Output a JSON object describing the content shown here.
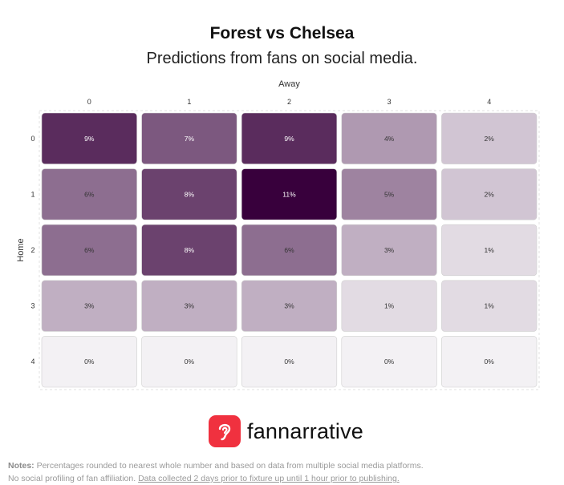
{
  "header": {
    "title": "Forest vs Chelsea",
    "subtitle": "Predictions from fans on social media."
  },
  "chart_data": {
    "type": "heatmap",
    "xlabel": "Away",
    "ylabel": "Home",
    "x_categories": [
      "0",
      "1",
      "2",
      "3",
      "4"
    ],
    "y_categories": [
      "0",
      "1",
      "2",
      "3",
      "4"
    ],
    "values": [
      [
        9,
        7,
        9,
        4,
        2
      ],
      [
        6,
        8,
        11,
        5,
        2
      ],
      [
        6,
        8,
        6,
        3,
        1
      ],
      [
        3,
        3,
        3,
        1,
        1
      ],
      [
        0,
        0,
        0,
        0,
        0
      ]
    ],
    "value_suffix": "%",
    "colors": {
      "min": "#f3f1f4",
      "max": "#38003c"
    }
  },
  "brand": {
    "name": "fannarrative",
    "logo_icon": "ear-icon",
    "color": "#f0313f"
  },
  "notes": {
    "label": "Notes:",
    "text1": " Percentages rounded to nearest whole number and based on data from multiple social media platforms.",
    "text2": "No social profiling of fan affiliation. ",
    "text3": "Data collected 2 days prior to fixture up until 1 hour prior to publishing."
  }
}
